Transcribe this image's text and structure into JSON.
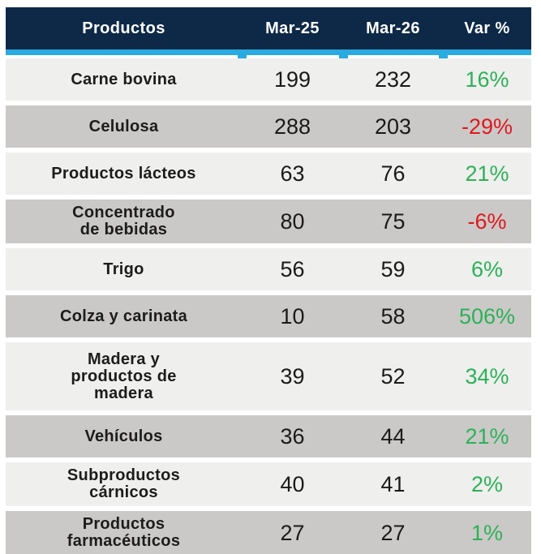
{
  "colors": {
    "header_background": "#0e2947",
    "accent_bar": "#29aae1",
    "row_light": "#efefee",
    "row_dark": "#cac9c7",
    "text": "#1c1c1a",
    "positive": "#2db158",
    "negative": "#e0181e"
  },
  "table": {
    "columns": [
      "Productos",
      "Mar-25",
      "Mar-26",
      "Var %"
    ],
    "rows": [
      {
        "name_lines": [
          "Carne bovina"
        ],
        "mar25": "199",
        "mar26": "232",
        "var": "16%",
        "var_type": "positive"
      },
      {
        "name_lines": [
          "Celulosa"
        ],
        "mar25": "288",
        "mar26": "203",
        "var": "-29%",
        "var_type": "negative"
      },
      {
        "name_lines": [
          "Productos lácteos"
        ],
        "mar25": "63",
        "mar26": "76",
        "var": "21%",
        "var_type": "positive"
      },
      {
        "name_lines": [
          "Concentrado",
          "de bebidas"
        ],
        "mar25": "80",
        "mar26": "75",
        "var": "-6%",
        "var_type": "negative"
      },
      {
        "name_lines": [
          "Trigo"
        ],
        "mar25": "56",
        "mar26": "59",
        "var": "6%",
        "var_type": "positive"
      },
      {
        "name_lines": [
          "Colza y carinata"
        ],
        "mar25": "10",
        "mar26": "58",
        "var": "506%",
        "var_type": "positive"
      },
      {
        "name_lines": [
          "Madera y",
          "productos de",
          "madera"
        ],
        "mar25": "39",
        "mar26": "52",
        "var": "34%",
        "var_type": "positive"
      },
      {
        "name_lines": [
          "Vehículos"
        ],
        "mar25": "36",
        "mar26": "44",
        "var": "21%",
        "var_type": "positive"
      },
      {
        "name_lines": [
          "Subproductos",
          "cárnicos"
        ],
        "mar25": "40",
        "mar26": "41",
        "var": "2%",
        "var_type": "positive"
      },
      {
        "name_lines": [
          "Productos",
          "farmacéuticos"
        ],
        "mar25": "27",
        "mar26": "27",
        "var": "1%",
        "var_type": "positive"
      }
    ]
  },
  "chart_data": {
    "type": "table",
    "title": "",
    "columns": [
      "Productos",
      "Mar-25",
      "Mar-26",
      "Var %"
    ],
    "rows": [
      [
        "Carne bovina",
        199,
        232,
        "16%"
      ],
      [
        "Celulosa",
        288,
        203,
        "-29%"
      ],
      [
        "Productos lácteos",
        63,
        76,
        "21%"
      ],
      [
        "Concentrado de bebidas",
        80,
        75,
        "-6%"
      ],
      [
        "Trigo",
        56,
        59,
        "6%"
      ],
      [
        "Colza y carinata",
        10,
        58,
        "506%"
      ],
      [
        "Madera y productos de madera",
        39,
        52,
        "34%"
      ],
      [
        "Vehículos",
        36,
        44,
        "21%"
      ],
      [
        "Subproductos cárnicos",
        40,
        41,
        "2%"
      ],
      [
        "Productos farmacéuticos",
        27,
        27,
        "1%"
      ]
    ]
  }
}
